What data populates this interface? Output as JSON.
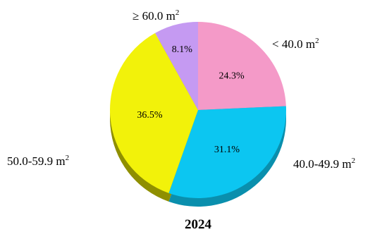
{
  "chart_data": {
    "type": "pie",
    "title": "2024",
    "unit_sup": "2",
    "slices": [
      {
        "category": "< 40.0 m",
        "value": 24.3,
        "value_label": "24.3%",
        "color": "#f49ac8",
        "shade": "#b8678f"
      },
      {
        "category": "40.0-49.9 m",
        "value": 31.1,
        "value_label": "31.1%",
        "color": "#0cc6f1",
        "shade": "#0a8fad"
      },
      {
        "category": "50.0-59.9 m",
        "value": 36.5,
        "value_label": "36.5%",
        "color": "#f2f20a",
        "shade": "#8f8f00"
      },
      {
        "category": "≥ 60.0 m",
        "value": 8.1,
        "value_label": "8.1%",
        "color": "#c59af2",
        "shade": "#8e6ab3"
      }
    ]
  }
}
